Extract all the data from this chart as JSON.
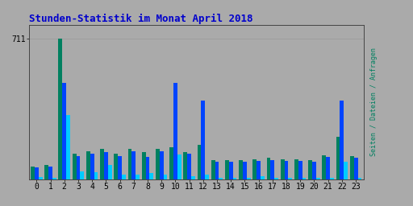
{
  "title": "Stunden-Statistik im Monat April 2018",
  "title_color": "#0000CC",
  "bg_color": "#AAAAAA",
  "plot_bg_color": "#AAAAAA",
  "color_seiten": "#008060",
  "color_dateien": "#0044FF",
  "color_anfragen": "#00CCFF",
  "ytick_val": 711,
  "hours": [
    0,
    1,
    2,
    3,
    4,
    5,
    6,
    7,
    8,
    9,
    10,
    11,
    12,
    13,
    14,
    15,
    16,
    17,
    18,
    19,
    20,
    21,
    22,
    23
  ],
  "seiten": [
    65,
    72,
    711,
    128,
    140,
    152,
    130,
    152,
    138,
    152,
    162,
    138,
    172,
    98,
    98,
    98,
    102,
    108,
    102,
    102,
    98,
    122,
    215,
    118
  ],
  "dateien": [
    60,
    65,
    485,
    118,
    128,
    138,
    118,
    142,
    112,
    142,
    485,
    128,
    395,
    88,
    88,
    88,
    92,
    98,
    92,
    92,
    88,
    112,
    395,
    108
  ],
  "anfragen": [
    12,
    8,
    325,
    40,
    35,
    72,
    25,
    25,
    30,
    25,
    125,
    15,
    25,
    8,
    8,
    8,
    15,
    8,
    8,
    8,
    8,
    8,
    88,
    8
  ],
  "ylim_max": 780,
  "bar_width": 0.28,
  "figsize": [
    5.12,
    2.56
  ],
  "dpi": 100,
  "grid_color": "#999999",
  "spine_color": "#444444",
  "ylabel_seiten": "Seiten",
  "ylabel_dateien": "Dateien",
  "ylabel_anfragen": "Anfragen"
}
